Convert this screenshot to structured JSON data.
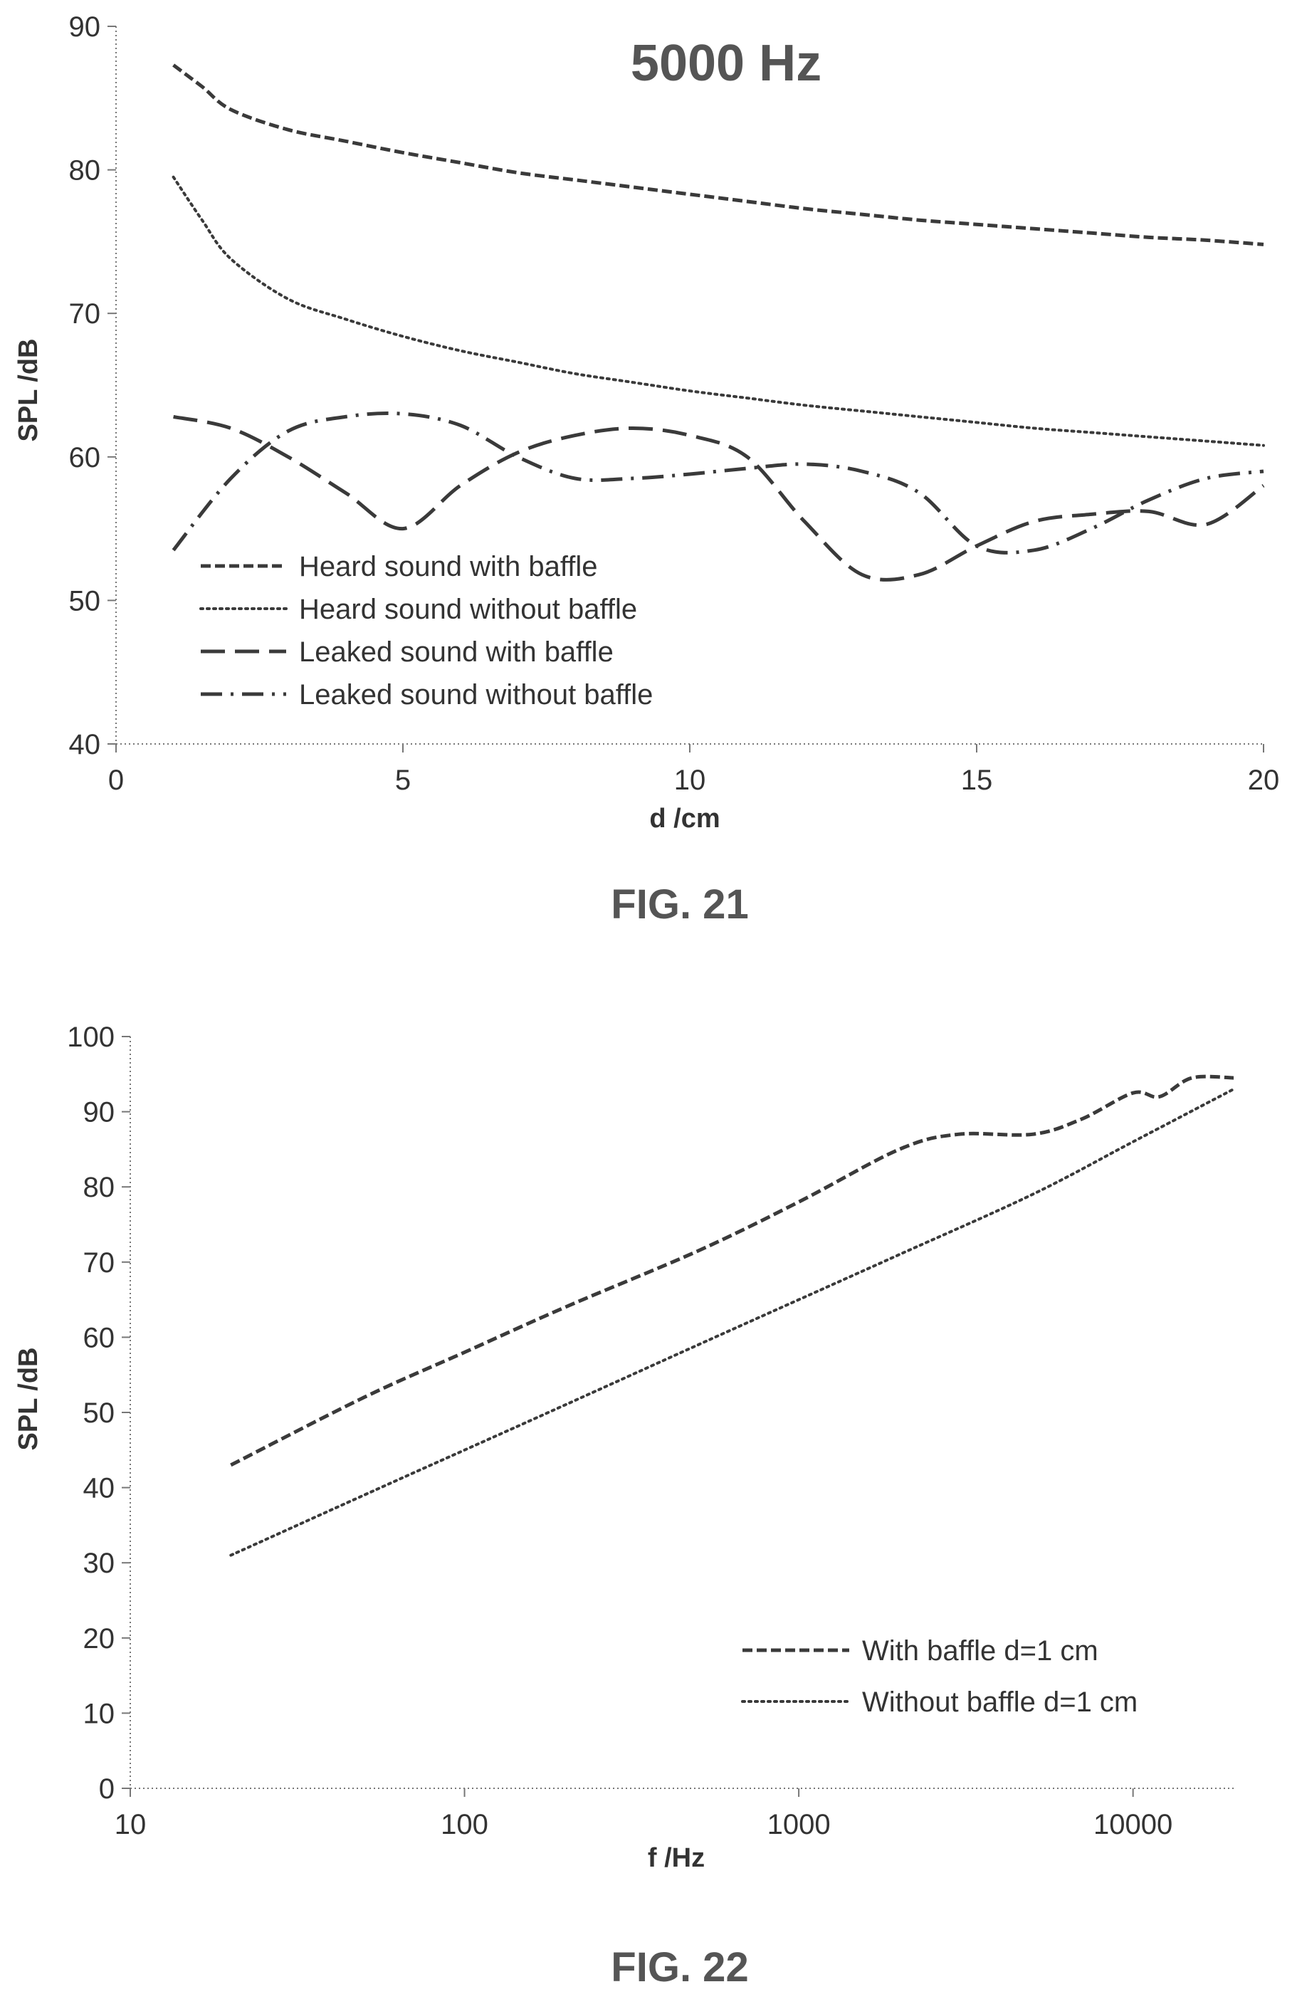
{
  "chart_data": [
    {
      "type": "line",
      "title": "5000 Hz",
      "caption": "FIG. 21",
      "xlabel": "d /cm",
      "ylabel": "SPL /dB",
      "xlim": [
        0,
        20
      ],
      "ylim": [
        40,
        90
      ],
      "xticks": [
        "0",
        "5",
        "10",
        "15",
        "20"
      ],
      "yticks": [
        "40",
        "50",
        "60",
        "70",
        "80",
        "90"
      ],
      "grid": false,
      "legend_position": "lower-left",
      "series": [
        {
          "name": "Heard sound with baffle",
          "style": "dashed",
          "x": [
            1,
            1.5,
            2,
            3,
            4,
            5,
            6,
            7,
            8,
            9,
            10,
            11,
            12,
            13,
            14,
            15,
            16,
            17,
            18,
            19,
            20
          ],
          "y": [
            87.3,
            85.8,
            84.2,
            82.8,
            82.0,
            81.2,
            80.5,
            79.8,
            79.3,
            78.8,
            78.3,
            77.8,
            77.3,
            76.9,
            76.5,
            76.2,
            75.9,
            75.6,
            75.3,
            75.1,
            74.8
          ]
        },
        {
          "name": "Heard sound without baffle",
          "style": "dotted",
          "x": [
            1,
            1.5,
            2,
            3,
            4,
            5,
            6,
            7,
            8,
            9,
            10,
            11,
            12,
            13,
            14,
            15,
            16,
            17,
            18,
            19,
            20
          ],
          "y": [
            79.5,
            76.5,
            73.8,
            71.0,
            69.6,
            68.4,
            67.4,
            66.6,
            65.8,
            65.2,
            64.6,
            64.1,
            63.6,
            63.2,
            62.8,
            62.4,
            62.0,
            61.7,
            61.4,
            61.1,
            60.8
          ]
        },
        {
          "name": "Leaked sound with baffle",
          "style": "longdash",
          "x": [
            1,
            2,
            3,
            4,
            5,
            6,
            7,
            8,
            9,
            10,
            11,
            12,
            13,
            14,
            15,
            16,
            17,
            18,
            19,
            20
          ],
          "y": [
            62.8,
            62.0,
            60.0,
            57.5,
            55.0,
            58.0,
            60.3,
            61.5,
            62.0,
            61.5,
            60.0,
            55.5,
            51.8,
            51.8,
            53.8,
            55.5,
            56.0,
            56.2,
            55.3,
            58.0
          ]
        },
        {
          "name": "Leaked sound without baffle",
          "style": "dashdot",
          "x": [
            1,
            2,
            3,
            4,
            5,
            6,
            7,
            8,
            9,
            10,
            11,
            12,
            13,
            14,
            15,
            16,
            17,
            18,
            19,
            20
          ],
          "y": [
            53.5,
            58.5,
            61.8,
            62.8,
            63.0,
            62.2,
            60.0,
            58.5,
            58.5,
            58.8,
            59.2,
            59.5,
            59.0,
            57.5,
            53.8,
            53.5,
            55.0,
            57.0,
            58.5,
            59.0
          ]
        }
      ]
    },
    {
      "type": "line",
      "caption": "FIG. 22",
      "xlabel": "f /Hz",
      "ylabel": "SPL /dB",
      "xscale": "log",
      "xlim": [
        10,
        20000
      ],
      "ylim": [
        0,
        100
      ],
      "xticks": [
        "10",
        "100",
        "1000",
        "10000"
      ],
      "yticks": [
        "0",
        "10",
        "20",
        "30",
        "40",
        "50",
        "60",
        "70",
        "80",
        "90",
        "100"
      ],
      "grid": false,
      "legend_position": "lower-right",
      "series": [
        {
          "name": "With baffle d=1 cm",
          "style": "dashed",
          "x": [
            20,
            50,
            100,
            200,
            500,
            1000,
            2000,
            3000,
            5000,
            7000,
            10000,
            12000,
            15000,
            20000
          ],
          "y": [
            43,
            52,
            58,
            64,
            71.5,
            78,
            85,
            87,
            87,
            89,
            92.5,
            92,
            94.5,
            94.5
          ]
        },
        {
          "name": "Without baffle d=1 cm",
          "style": "dotted",
          "x": [
            20,
            50,
            100,
            200,
            500,
            1000,
            2000,
            5000,
            10000,
            20000
          ],
          "y": [
            31,
            39,
            45,
            51,
            59,
            65,
            71,
            79,
            86,
            93
          ]
        }
      ]
    }
  ],
  "colors": {
    "line": "#3a3a3a",
    "axis": "#777777",
    "text": "#333333"
  }
}
